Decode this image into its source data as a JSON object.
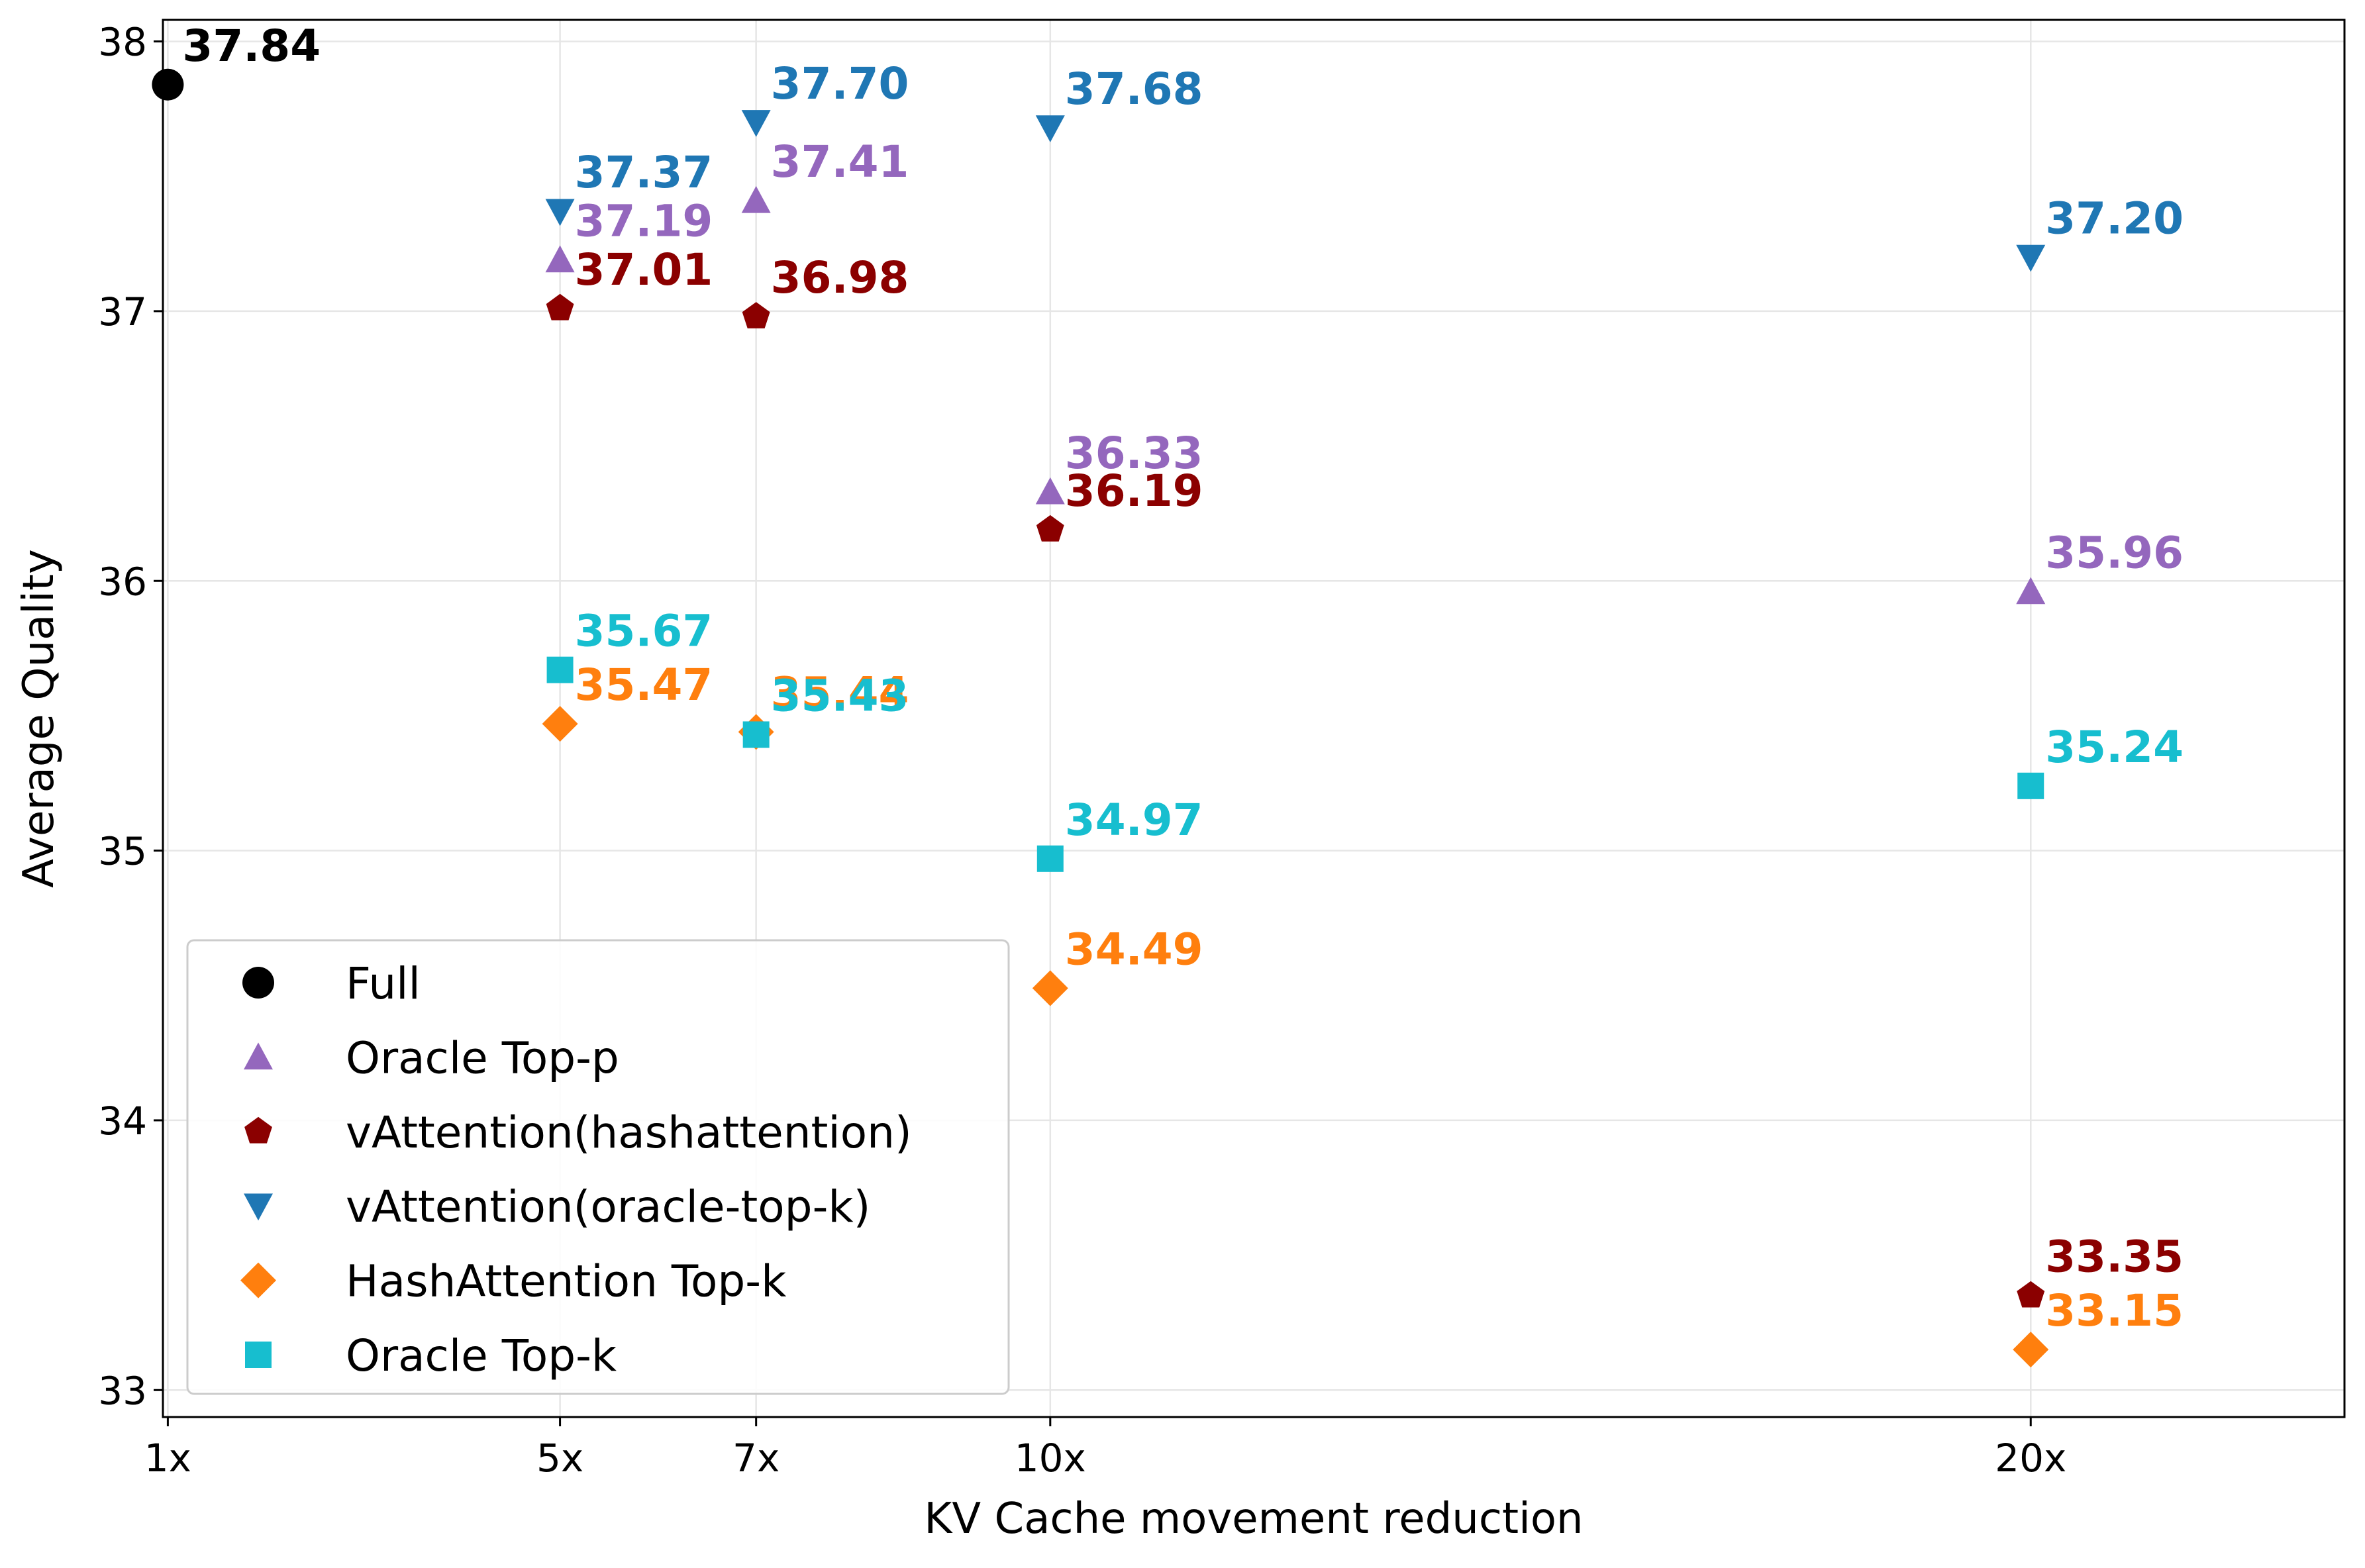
{
  "chart_data": {
    "type": "scatter",
    "xlabel": "KV Cache movement reduction",
    "ylabel": "Average Quality",
    "xlim": [
      0.95,
      23.2
    ],
    "ylim": [
      32.9,
      38.08
    ],
    "x_ticks": [
      {
        "value": 1,
        "label": "1x"
      },
      {
        "value": 5,
        "label": "5x"
      },
      {
        "value": 7,
        "label": "7x"
      },
      {
        "value": 10,
        "label": "10x"
      },
      {
        "value": 20,
        "label": "20x"
      }
    ],
    "y_ticks": [
      {
        "value": 33,
        "label": "33"
      },
      {
        "value": 34,
        "label": "34"
      },
      {
        "value": 35,
        "label": "35"
      },
      {
        "value": 36,
        "label": "36"
      },
      {
        "value": 37,
        "label": "37"
      },
      {
        "value": 38,
        "label": "38"
      }
    ],
    "grid": true,
    "legend_position": "lower-left",
    "series": [
      {
        "name": "Full",
        "marker": "circle",
        "color": "#000000",
        "points": [
          {
            "x": 1,
            "y": 37.84,
            "label": "37.84"
          }
        ]
      },
      {
        "name": "Oracle Top-p",
        "marker": "triangle-up",
        "color": "#9467bd",
        "points": [
          {
            "x": 5,
            "y": 37.19,
            "label": "37.19"
          },
          {
            "x": 7,
            "y": 37.41,
            "label": "37.41"
          },
          {
            "x": 10,
            "y": 36.33,
            "label": "36.33"
          },
          {
            "x": 20,
            "y": 35.96,
            "label": "35.96"
          }
        ]
      },
      {
        "name": "vAttention(hashattention)",
        "marker": "pentagon",
        "color": "#8b0000",
        "points": [
          {
            "x": 5,
            "y": 37.01,
            "label": "37.01"
          },
          {
            "x": 7,
            "y": 36.98,
            "label": "36.98"
          },
          {
            "x": 10,
            "y": 36.19,
            "label": "36.19"
          },
          {
            "x": 20,
            "y": 33.35,
            "label": "33.35"
          }
        ]
      },
      {
        "name": "vAttention(oracle-top-k)",
        "marker": "triangle-down",
        "color": "#1f77b4",
        "points": [
          {
            "x": 5,
            "y": 37.37,
            "label": "37.37"
          },
          {
            "x": 7,
            "y": 37.7,
            "label": "37.70"
          },
          {
            "x": 10,
            "y": 37.68,
            "label": "37.68"
          },
          {
            "x": 20,
            "y": 37.2,
            "label": "37.20"
          }
        ]
      },
      {
        "name": "HashAttention Top-k",
        "marker": "diamond",
        "color": "#ff7f0e",
        "points": [
          {
            "x": 5,
            "y": 35.47,
            "label": "35.47"
          },
          {
            "x": 7,
            "y": 35.44,
            "label": "35.44"
          },
          {
            "x": 10,
            "y": 34.49,
            "label": "34.49"
          },
          {
            "x": 20,
            "y": 33.15,
            "label": "33.15"
          }
        ]
      },
      {
        "name": "Oracle Top-k",
        "marker": "square",
        "color": "#17becf",
        "points": [
          {
            "x": 5,
            "y": 35.67,
            "label": "35.67"
          },
          {
            "x": 7,
            "y": 35.43,
            "label": "35.43"
          },
          {
            "x": 10,
            "y": 34.97,
            "label": "34.97"
          },
          {
            "x": 20,
            "y": 35.24,
            "label": "35.24"
          }
        ]
      }
    ]
  }
}
